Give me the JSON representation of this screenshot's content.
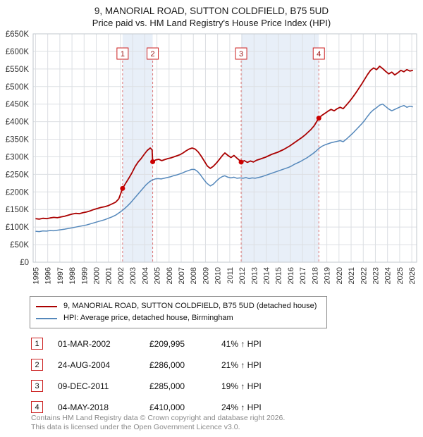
{
  "title": "9, MANORIAL ROAD, SUTTON COLDFIELD, B75 5UD",
  "subtitle": "Price paid vs. HM Land Registry's House Price Index (HPI)",
  "legend": [
    {
      "label": "9, MANORIAL ROAD, SUTTON COLDFIELD, B75 5UD (detached house)",
      "color": "#aa0000"
    },
    {
      "label": "HPI: Average price, detached house, Birmingham",
      "color": "#5588bb"
    }
  ],
  "transactions": [
    {
      "num": "1",
      "date": "01-MAR-2002",
      "price": "£209,995",
      "hpi": "41% ↑ HPI"
    },
    {
      "num": "2",
      "date": "24-AUG-2004",
      "price": "£286,000",
      "hpi": "21% ↑ HPI"
    },
    {
      "num": "3",
      "date": "09-DEC-2011",
      "price": "£285,000",
      "hpi": "19% ↑ HPI"
    },
    {
      "num": "4",
      "date": "04-MAY-2018",
      "price": "£410,000",
      "hpi": "24% ↑ HPI"
    }
  ],
  "footer": {
    "line1": "Contains HM Land Registry data © Crown copyright and database right 2026.",
    "line2": "This data is licensed under the Open Government Licence v3.0."
  },
  "chart_data": {
    "type": "line",
    "title": "9, MANORIAL ROAD, SUTTON COLDFIELD, B75 5UD",
    "subtitle": "Price paid vs. HM Land Registry's House Price Index (HPI)",
    "xlim": [
      1994.8,
      2026.4
    ],
    "ylim": [
      0,
      650000
    ],
    "x_ticks": [
      1995,
      1996,
      1997,
      1998,
      1999,
      2000,
      2001,
      2002,
      2003,
      2004,
      2005,
      2006,
      2007,
      2008,
      2009,
      2010,
      2011,
      2012,
      2013,
      2014,
      2015,
      2016,
      2017,
      2018,
      2019,
      2020,
      2021,
      2022,
      2023,
      2024,
      2025,
      2026
    ],
    "y_ticks": [
      {
        "v": 0,
        "label": "£0"
      },
      {
        "v": 50000,
        "label": "£50K"
      },
      {
        "v": 100000,
        "label": "£100K"
      },
      {
        "v": 150000,
        "label": "£150K"
      },
      {
        "v": 200000,
        "label": "£200K"
      },
      {
        "v": 250000,
        "label": "£250K"
      },
      {
        "v": 300000,
        "label": "£300K"
      },
      {
        "v": 350000,
        "label": "£350K"
      },
      {
        "v": 400000,
        "label": "£400K"
      },
      {
        "v": 450000,
        "label": "£450K"
      },
      {
        "v": 500000,
        "label": "£500K"
      },
      {
        "v": 550000,
        "label": "£550K"
      },
      {
        "v": 600000,
        "label": "£600K"
      },
      {
        "v": 650000,
        "label": "£650K"
      }
    ],
    "grid_color": "#dcdfe3",
    "band_color": "#e8eff8",
    "marker_line_color": "#dd7777",
    "marker_box_color": "#cc2222",
    "shaded_bands": [
      [
        2002.17,
        2004.65
      ],
      [
        2011.94,
        2018.34
      ]
    ],
    "markers": [
      {
        "x": 2002.17,
        "y": 209995,
        "label": "1"
      },
      {
        "x": 2004.65,
        "y": 286000,
        "label": "2"
      },
      {
        "x": 2011.94,
        "y": 285000,
        "label": "3"
      },
      {
        "x": 2018.34,
        "y": 410000,
        "label": "4"
      }
    ],
    "series": [
      {
        "name": "price-paid-line",
        "label": "9, MANORIAL ROAD, SUTTON COLDFIELD, B75 5UD (detached house)",
        "color": "#aa0000",
        "points": [
          [
            1995.0,
            124000
          ],
          [
            1995.3,
            122500
          ],
          [
            1995.6,
            125000
          ],
          [
            1995.9,
            124000
          ],
          [
            1996.2,
            126000
          ],
          [
            1996.5,
            127500
          ],
          [
            1996.8,
            126500
          ],
          [
            1997.1,
            129000
          ],
          [
            1997.4,
            131000
          ],
          [
            1997.7,
            134000
          ],
          [
            1998.0,
            137000
          ],
          [
            1998.3,
            139000
          ],
          [
            1998.6,
            138000
          ],
          [
            1998.9,
            141000
          ],
          [
            1999.2,
            143000
          ],
          [
            1999.5,
            146000
          ],
          [
            1999.8,
            150000
          ],
          [
            2000.1,
            153000
          ],
          [
            2000.4,
            156000
          ],
          [
            2000.7,
            158000
          ],
          [
            2001.0,
            161000
          ],
          [
            2001.3,
            166000
          ],
          [
            2001.6,
            171000
          ],
          [
            2001.85,
            180000
          ],
          [
            2002.17,
            209995
          ],
          [
            2002.45,
            226000
          ],
          [
            2002.7,
            240000
          ],
          [
            2002.95,
            255000
          ],
          [
            2003.2,
            272000
          ],
          [
            2003.45,
            285000
          ],
          [
            2003.7,
            295000
          ],
          [
            2003.95,
            307000
          ],
          [
            2004.2,
            318000
          ],
          [
            2004.45,
            325000
          ],
          [
            2004.6,
            320000
          ],
          [
            2004.65,
            286000
          ],
          [
            2004.9,
            291000
          ],
          [
            2005.15,
            293000
          ],
          [
            2005.4,
            289000
          ],
          [
            2005.65,
            292000
          ],
          [
            2005.9,
            295000
          ],
          [
            2006.15,
            297000
          ],
          [
            2006.4,
            300000
          ],
          [
            2006.65,
            303000
          ],
          [
            2006.9,
            306000
          ],
          [
            2007.15,
            311000
          ],
          [
            2007.4,
            317000
          ],
          [
            2007.65,
            322000
          ],
          [
            2007.9,
            325000
          ],
          [
            2008.15,
            322000
          ],
          [
            2008.4,
            314000
          ],
          [
            2008.65,
            302000
          ],
          [
            2008.9,
            288000
          ],
          [
            2009.15,
            274000
          ],
          [
            2009.4,
            267000
          ],
          [
            2009.65,
            273000
          ],
          [
            2009.9,
            282000
          ],
          [
            2010.15,
            293000
          ],
          [
            2010.4,
            304000
          ],
          [
            2010.6,
            311000
          ],
          [
            2010.85,
            304000
          ],
          [
            2011.1,
            298000
          ],
          [
            2011.35,
            304000
          ],
          [
            2011.6,
            296000
          ],
          [
            2011.8,
            290000
          ],
          [
            2011.94,
            285000
          ],
          [
            2012.2,
            289000
          ],
          [
            2012.45,
            284000
          ],
          [
            2012.7,
            288000
          ],
          [
            2012.95,
            285000
          ],
          [
            2013.2,
            290000
          ],
          [
            2013.45,
            293000
          ],
          [
            2013.7,
            296000
          ],
          [
            2013.95,
            299000
          ],
          [
            2014.2,
            303000
          ],
          [
            2014.45,
            307000
          ],
          [
            2014.7,
            310000
          ],
          [
            2014.95,
            313000
          ],
          [
            2015.2,
            317000
          ],
          [
            2015.45,
            321000
          ],
          [
            2015.7,
            326000
          ],
          [
            2015.95,
            331000
          ],
          [
            2016.2,
            337000
          ],
          [
            2016.45,
            343000
          ],
          [
            2016.7,
            349000
          ],
          [
            2016.95,
            355000
          ],
          [
            2017.2,
            362000
          ],
          [
            2017.45,
            370000
          ],
          [
            2017.7,
            378000
          ],
          [
            2017.95,
            388000
          ],
          [
            2018.34,
            410000
          ],
          [
            2018.6,
            418000
          ],
          [
            2018.85,
            424000
          ],
          [
            2019.1,
            430000
          ],
          [
            2019.35,
            435000
          ],
          [
            2019.6,
            431000
          ],
          [
            2019.85,
            437000
          ],
          [
            2020.1,
            441000
          ],
          [
            2020.35,
            437000
          ],
          [
            2020.6,
            447000
          ],
          [
            2020.85,
            457000
          ],
          [
            2021.1,
            468000
          ],
          [
            2021.35,
            480000
          ],
          [
            2021.6,
            493000
          ],
          [
            2021.85,
            506000
          ],
          [
            2022.1,
            520000
          ],
          [
            2022.35,
            534000
          ],
          [
            2022.6,
            546000
          ],
          [
            2022.85,
            553000
          ],
          [
            2023.1,
            548000
          ],
          [
            2023.35,
            558000
          ],
          [
            2023.6,
            551000
          ],
          [
            2023.85,
            543000
          ],
          [
            2024.1,
            536000
          ],
          [
            2024.35,
            541000
          ],
          [
            2024.6,
            533000
          ],
          [
            2024.85,
            539000
          ],
          [
            2025.1,
            546000
          ],
          [
            2025.35,
            542000
          ],
          [
            2025.6,
            548000
          ],
          [
            2025.85,
            544000
          ],
          [
            2026.1,
            546000
          ]
        ]
      },
      {
        "name": "hpi-line",
        "label": "HPI: Average price, detached house, Birmingham",
        "color": "#5588bb",
        "points": [
          [
            1995.0,
            88000
          ],
          [
            1995.3,
            87000
          ],
          [
            1995.6,
            89000
          ],
          [
            1995.9,
            88500
          ],
          [
            1996.2,
            90000
          ],
          [
            1996.5,
            89500
          ],
          [
            1996.8,
            91000
          ],
          [
            1997.1,
            92500
          ],
          [
            1997.4,
            94000
          ],
          [
            1997.7,
            96000
          ],
          [
            1998.0,
            98000
          ],
          [
            1998.3,
            100000
          ],
          [
            1998.6,
            102000
          ],
          [
            1998.9,
            104000
          ],
          [
            1999.2,
            106000
          ],
          [
            1999.5,
            109000
          ],
          [
            1999.8,
            112000
          ],
          [
            2000.1,
            115000
          ],
          [
            2000.4,
            118000
          ],
          [
            2000.7,
            121000
          ],
          [
            2001.0,
            125000
          ],
          [
            2001.3,
            129000
          ],
          [
            2001.6,
            134000
          ],
          [
            2001.85,
            140000
          ],
          [
            2002.1,
            146000
          ],
          [
            2002.35,
            153000
          ],
          [
            2002.6,
            161000
          ],
          [
            2002.85,
            170000
          ],
          [
            2003.1,
            180000
          ],
          [
            2003.35,
            190000
          ],
          [
            2003.6,
            200000
          ],
          [
            2003.85,
            210000
          ],
          [
            2004.1,
            220000
          ],
          [
            2004.35,
            228000
          ],
          [
            2004.6,
            234000
          ],
          [
            2004.85,
            237000
          ],
          [
            2005.1,
            238000
          ],
          [
            2005.35,
            237000
          ],
          [
            2005.6,
            239000
          ],
          [
            2005.85,
            241000
          ],
          [
            2006.1,
            243000
          ],
          [
            2006.35,
            246000
          ],
          [
            2006.6,
            248000
          ],
          [
            2006.85,
            251000
          ],
          [
            2007.1,
            254000
          ],
          [
            2007.35,
            258000
          ],
          [
            2007.6,
            261000
          ],
          [
            2007.85,
            264000
          ],
          [
            2008.1,
            264000
          ],
          [
            2008.35,
            258000
          ],
          [
            2008.6,
            248000
          ],
          [
            2008.85,
            236000
          ],
          [
            2009.1,
            225000
          ],
          [
            2009.4,
            217000
          ],
          [
            2009.65,
            222000
          ],
          [
            2009.9,
            231000
          ],
          [
            2010.15,
            239000
          ],
          [
            2010.4,
            244000
          ],
          [
            2010.6,
            246000
          ],
          [
            2010.85,
            242000
          ],
          [
            2011.1,
            240000
          ],
          [
            2011.35,
            242000
          ],
          [
            2011.6,
            239000
          ],
          [
            2011.85,
            240000
          ],
          [
            2012.1,
            239000
          ],
          [
            2012.35,
            241000
          ],
          [
            2012.6,
            238000
          ],
          [
            2012.85,
            240000
          ],
          [
            2013.1,
            239000
          ],
          [
            2013.35,
            241000
          ],
          [
            2013.6,
            243000
          ],
          [
            2013.85,
            246000
          ],
          [
            2014.1,
            249000
          ],
          [
            2014.35,
            252000
          ],
          [
            2014.6,
            255000
          ],
          [
            2014.85,
            258000
          ],
          [
            2015.1,
            261000
          ],
          [
            2015.35,
            264000
          ],
          [
            2015.6,
            267000
          ],
          [
            2015.85,
            270000
          ],
          [
            2016.1,
            274000
          ],
          [
            2016.35,
            279000
          ],
          [
            2016.6,
            283000
          ],
          [
            2016.85,
            287000
          ],
          [
            2017.1,
            292000
          ],
          [
            2017.35,
            297000
          ],
          [
            2017.6,
            303000
          ],
          [
            2017.85,
            309000
          ],
          [
            2018.1,
            316000
          ],
          [
            2018.35,
            324000
          ],
          [
            2018.6,
            330000
          ],
          [
            2018.85,
            334000
          ],
          [
            2019.1,
            337000
          ],
          [
            2019.35,
            340000
          ],
          [
            2019.6,
            342000
          ],
          [
            2019.85,
            344000
          ],
          [
            2020.1,
            346000
          ],
          [
            2020.35,
            343000
          ],
          [
            2020.6,
            350000
          ],
          [
            2020.85,
            358000
          ],
          [
            2021.1,
            366000
          ],
          [
            2021.35,
            375000
          ],
          [
            2021.6,
            384000
          ],
          [
            2021.85,
            393000
          ],
          [
            2022.1,
            403000
          ],
          [
            2022.35,
            415000
          ],
          [
            2022.6,
            426000
          ],
          [
            2022.85,
            434000
          ],
          [
            2023.1,
            440000
          ],
          [
            2023.35,
            447000
          ],
          [
            2023.6,
            450000
          ],
          [
            2023.85,
            443000
          ],
          [
            2024.1,
            436000
          ],
          [
            2024.35,
            431000
          ],
          [
            2024.6,
            435000
          ],
          [
            2024.85,
            439000
          ],
          [
            2025.1,
            443000
          ],
          [
            2025.35,
            446000
          ],
          [
            2025.6,
            441000
          ],
          [
            2025.85,
            444000
          ],
          [
            2026.1,
            442000
          ]
        ]
      }
    ]
  }
}
